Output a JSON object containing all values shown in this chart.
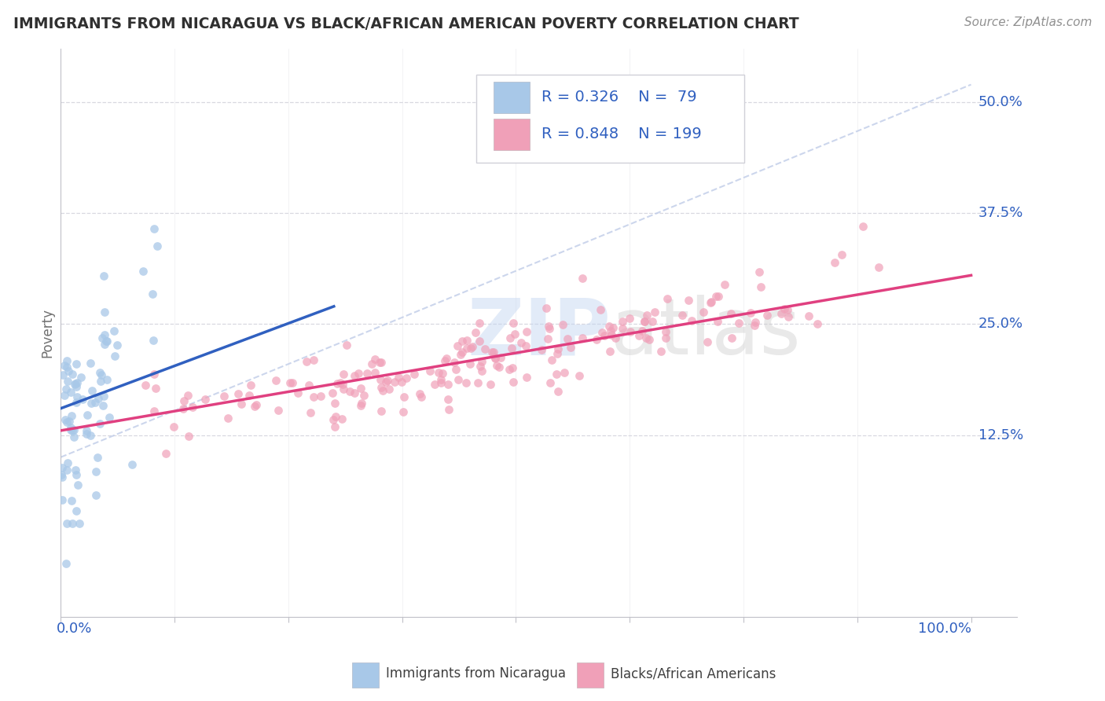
{
  "title": "IMMIGRANTS FROM NICARAGUA VS BLACK/AFRICAN AMERICAN POVERTY CORRELATION CHART",
  "source": "Source: ZipAtlas.com",
  "ylabel": "Poverty",
  "ytick_labels": [
    "12.5%",
    "25.0%",
    "37.5%",
    "50.0%"
  ],
  "ytick_values": [
    0.125,
    0.25,
    0.375,
    0.5
  ],
  "xlim": [
    0.0,
    1.05
  ],
  "ylim": [
    -0.08,
    0.56
  ],
  "color_blue": "#a8c8e8",
  "color_pink": "#f0a0b8",
  "line_blue": "#3060c0",
  "line_pink": "#e04080",
  "diag_color": "#c0cce8",
  "background": "#ffffff",
  "title_color": "#303030",
  "source_color": "#909090",
  "grid_color": "#d8d8e0",
  "axis_color": "#c0c0c8",
  "seed": 12345,
  "N_blue": 79,
  "N_pink": 199,
  "R_blue": 0.326,
  "R_pink": 0.848,
  "blue_line_x0": 0.0,
  "blue_line_y0": 0.155,
  "blue_line_x1": 0.3,
  "blue_line_y1": 0.27,
  "pink_line_x0": 0.0,
  "pink_line_y0": 0.13,
  "pink_line_x1": 1.0,
  "pink_line_y1": 0.305
}
